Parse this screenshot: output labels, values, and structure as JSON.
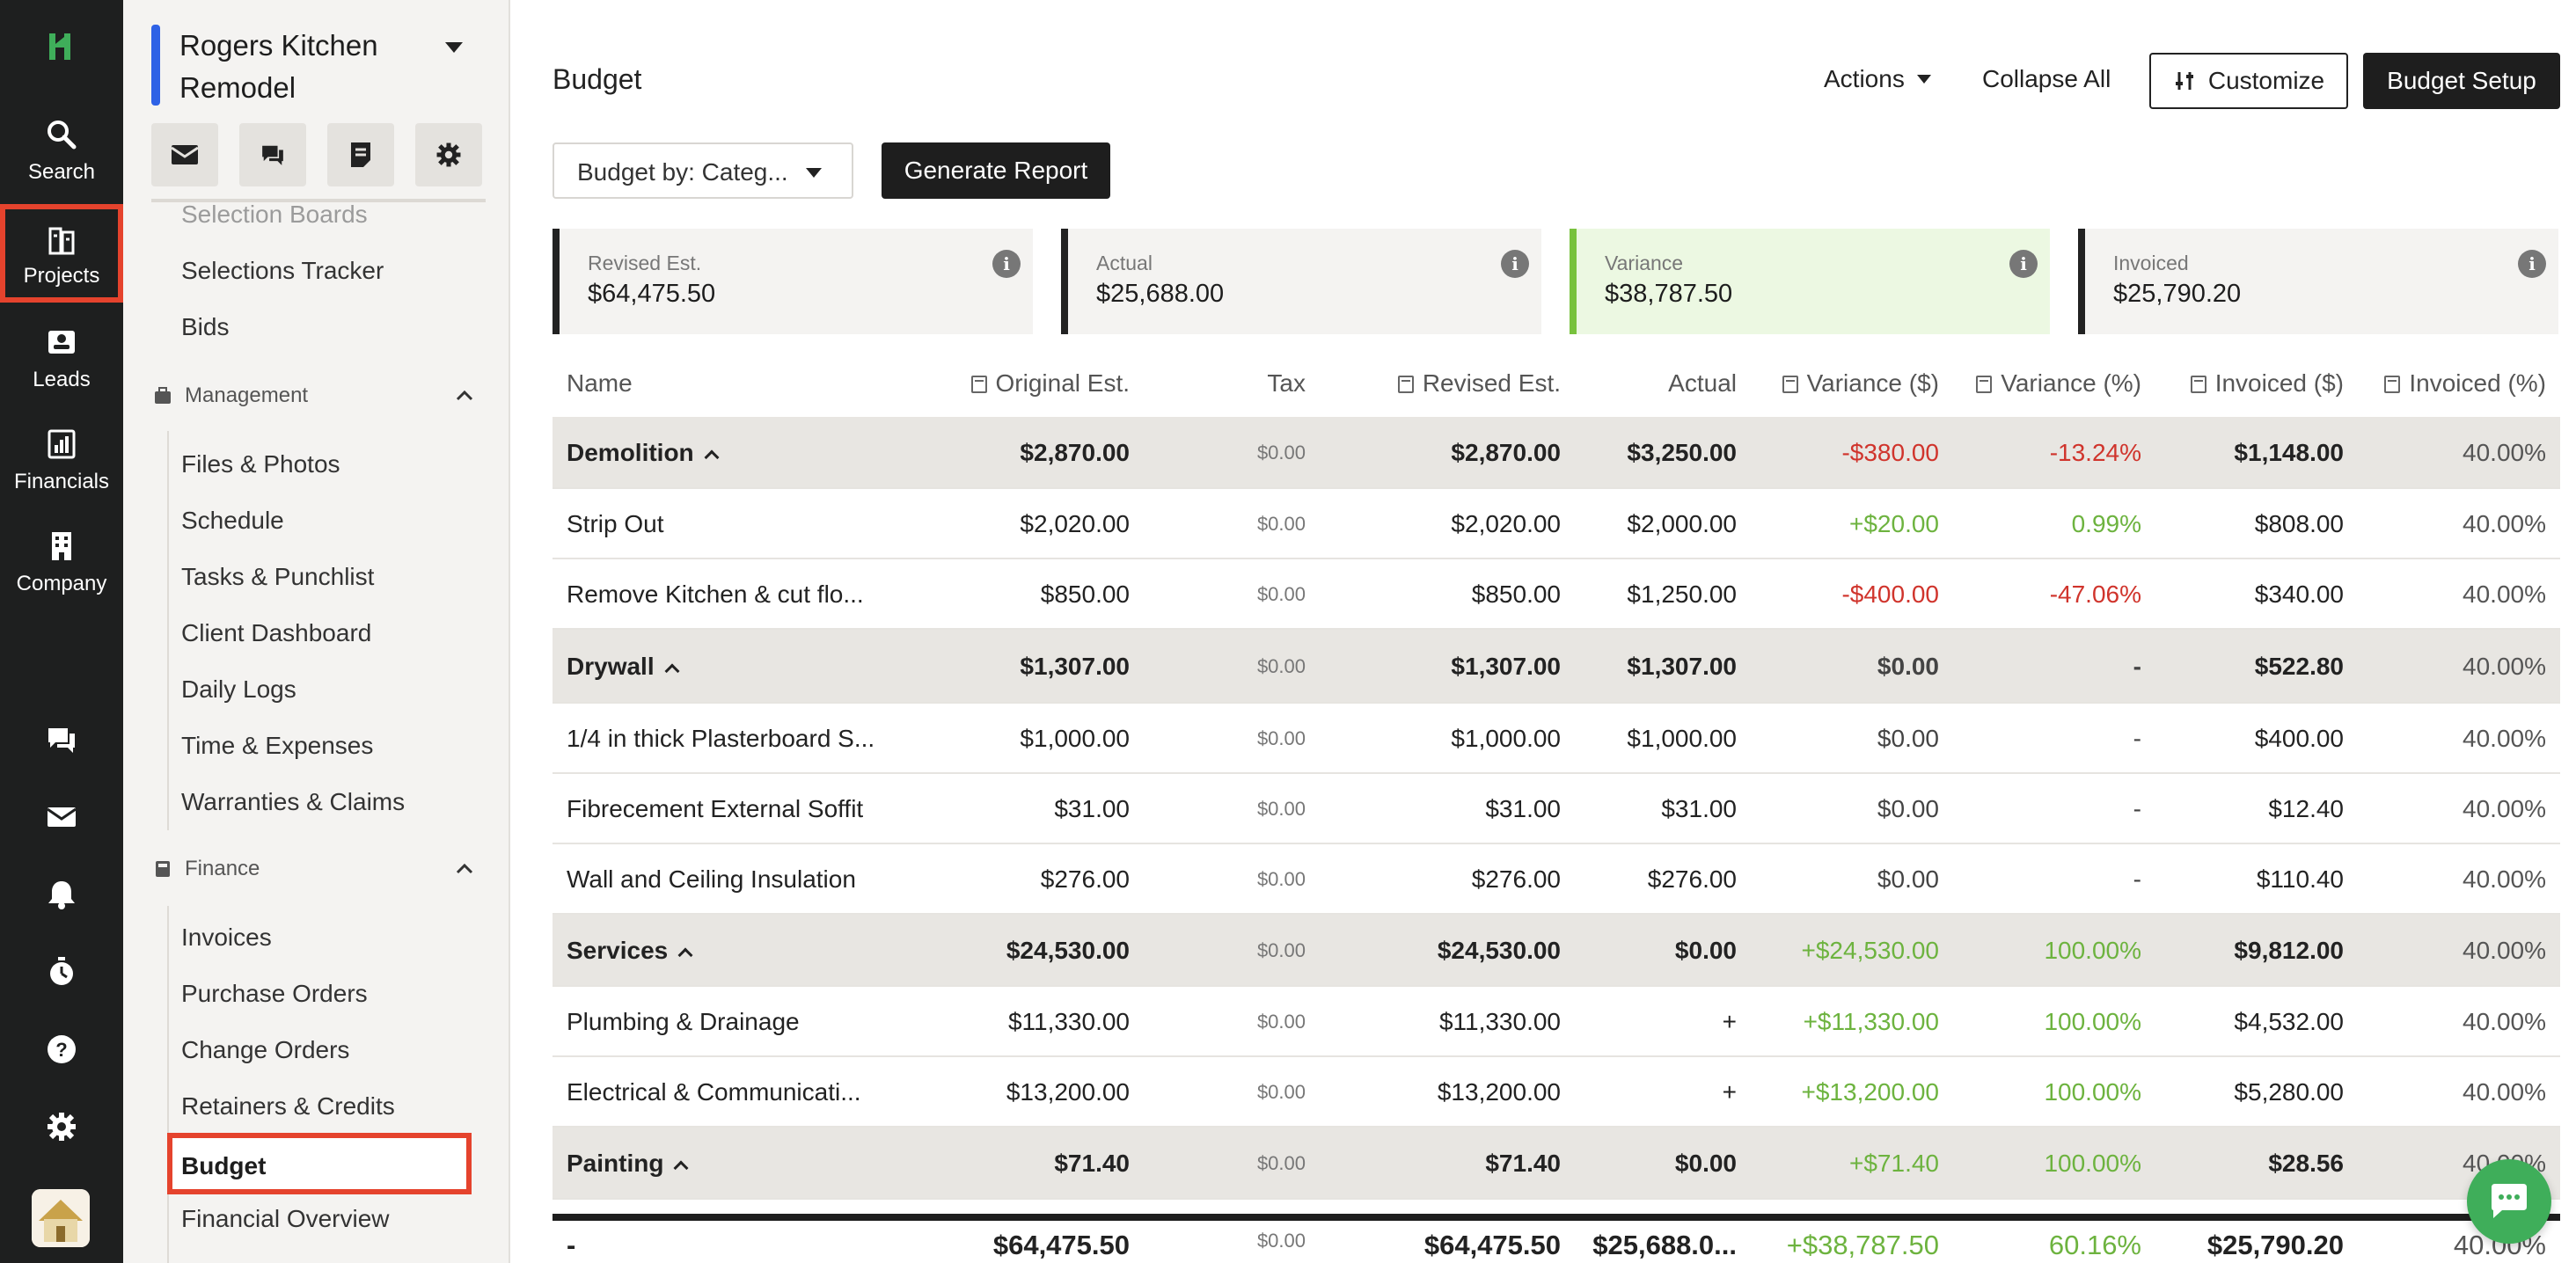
{
  "rail": {
    "items": [
      {
        "label": "Search",
        "icon": "search-icon"
      },
      {
        "label": "Projects",
        "icon": "projects-icon"
      },
      {
        "label": "Leads",
        "icon": "leads-icon"
      },
      {
        "label": "Financials",
        "icon": "financials-icon"
      },
      {
        "label": "Company",
        "icon": "company-icon"
      }
    ],
    "bottom_icons": [
      "messages-icon",
      "mail-icon",
      "bell-icon",
      "timer-icon",
      "help-icon",
      "settings-icon"
    ]
  },
  "sidebar": {
    "project_title": "Rogers Kitchen Remodel",
    "tools": [
      "mail-icon",
      "messages-icon",
      "notes-icon",
      "settings-icon"
    ],
    "top_items": [
      "Selection Boards",
      "Selections Tracker",
      "Bids"
    ],
    "management": {
      "title": "Management",
      "items": [
        "Files & Photos",
        "Schedule",
        "Tasks & Punchlist",
        "Client Dashboard",
        "Daily Logs",
        "Time & Expenses",
        "Warranties & Claims"
      ]
    },
    "finance": {
      "title": "Finance",
      "items": [
        "Invoices",
        "Purchase Orders",
        "Change Orders",
        "Retainers & Credits",
        "Budget",
        "Financial Overview"
      ]
    }
  },
  "header": {
    "title": "Budget",
    "actions": "Actions",
    "collapse_all": "Collapse All",
    "customize": "Customize",
    "budget_setup": "Budget Setup",
    "budget_by": "Budget by: Categ...",
    "generate_report": "Generate Report"
  },
  "cards": [
    {
      "label": "Revised Est.",
      "value": "$64,475.50"
    },
    {
      "label": "Actual",
      "value": "$25,688.00"
    },
    {
      "label": "Variance",
      "value": "$38,787.50"
    },
    {
      "label": "Invoiced",
      "value": "$25,790.20"
    }
  ],
  "table": {
    "columns": [
      "Name",
      "Original Est.",
      "Tax",
      "Revised Est.",
      "Actual",
      "Variance ($)",
      "Variance (%)",
      "Invoiced ($)",
      "Invoiced (%)"
    ],
    "rows": [
      {
        "type": "cat",
        "name": "Demolition",
        "orig": "$2,870.00",
        "tax": "$0.00",
        "rev": "$2,870.00",
        "actual": "$3,250.00",
        "var": "-$380.00",
        "varp": "-13.24%",
        "inv": "$1,148.00",
        "invp": "40.00%",
        "tone": "red"
      },
      {
        "type": "item",
        "name": "Strip Out",
        "orig": "$2,020.00",
        "tax": "$0.00",
        "rev": "$2,020.00",
        "actual": "$2,000.00",
        "var": "+$20.00",
        "varp": "0.99%",
        "inv": "$808.00",
        "invp": "40.00%",
        "tone": "green"
      },
      {
        "type": "item",
        "name": "Remove Kitchen & cut flo...",
        "orig": "$850.00",
        "tax": "$0.00",
        "rev": "$850.00",
        "actual": "$1,250.00",
        "var": "-$400.00",
        "varp": "-47.06%",
        "inv": "$340.00",
        "invp": "40.00%",
        "tone": "red"
      },
      {
        "type": "cat",
        "name": "Drywall",
        "orig": "$1,307.00",
        "tax": "$0.00",
        "rev": "$1,307.00",
        "actual": "$1,307.00",
        "var": "$0.00",
        "varp": "-",
        "inv": "$522.80",
        "invp": "40.00%",
        "tone": "muted"
      },
      {
        "type": "item",
        "name": "1/4 in thick Plasterboard S...",
        "orig": "$1,000.00",
        "tax": "$0.00",
        "rev": "$1,000.00",
        "actual": "$1,000.00",
        "var": "$0.00",
        "varp": "-",
        "inv": "$400.00",
        "invp": "40.00%",
        "tone": "muted"
      },
      {
        "type": "item",
        "name": "Fibrecement External Soffit",
        "orig": "$31.00",
        "tax": "$0.00",
        "rev": "$31.00",
        "actual": "$31.00",
        "var": "$0.00",
        "varp": "-",
        "inv": "$12.40",
        "invp": "40.00%",
        "tone": "muted"
      },
      {
        "type": "item",
        "name": "Wall and Ceiling Insulation",
        "orig": "$276.00",
        "tax": "$0.00",
        "rev": "$276.00",
        "actual": "$276.00",
        "var": "$0.00",
        "varp": "-",
        "inv": "$110.40",
        "invp": "40.00%",
        "tone": "muted"
      },
      {
        "type": "cat",
        "name": "Services",
        "orig": "$24,530.00",
        "tax": "$0.00",
        "rev": "$24,530.00",
        "actual": "$0.00",
        "var": "+$24,530.00",
        "varp": "100.00%",
        "inv": "$9,812.00",
        "invp": "40.00%",
        "tone": "green"
      },
      {
        "type": "item",
        "name": "Plumbing & Drainage",
        "orig": "$11,330.00",
        "tax": "$0.00",
        "rev": "$11,330.00",
        "actual": "+",
        "var": "+$11,330.00",
        "varp": "100.00%",
        "inv": "$4,532.00",
        "invp": "40.00%",
        "tone": "green"
      },
      {
        "type": "item",
        "name": "Electrical & Communicati...",
        "orig": "$13,200.00",
        "tax": "$0.00",
        "rev": "$13,200.00",
        "actual": "+",
        "var": "+$13,200.00",
        "varp": "100.00%",
        "inv": "$5,280.00",
        "invp": "40.00%",
        "tone": "green"
      },
      {
        "type": "cat",
        "name": "Painting",
        "orig": "$71.40",
        "tax": "$0.00",
        "rev": "$71.40",
        "actual": "$0.00",
        "var": "+$71.40",
        "varp": "100.00%",
        "inv": "$28.56",
        "invp": "40.00%",
        "tone": "green"
      }
    ],
    "total": {
      "name": "-",
      "orig": "$64,475.50",
      "tax": "$0.00",
      "rev": "$64,475.50",
      "actual": "$25,688.0...",
      "var": "+$38,787.50",
      "varp": "60.16%",
      "inv": "$25,790.20",
      "invp": "40.00%"
    }
  },
  "colors": {
    "accent_red": "#e5432d",
    "variance_green": "#6db33f",
    "negative_red": "#d0342c",
    "primary_dark": "#1e1e1e"
  }
}
